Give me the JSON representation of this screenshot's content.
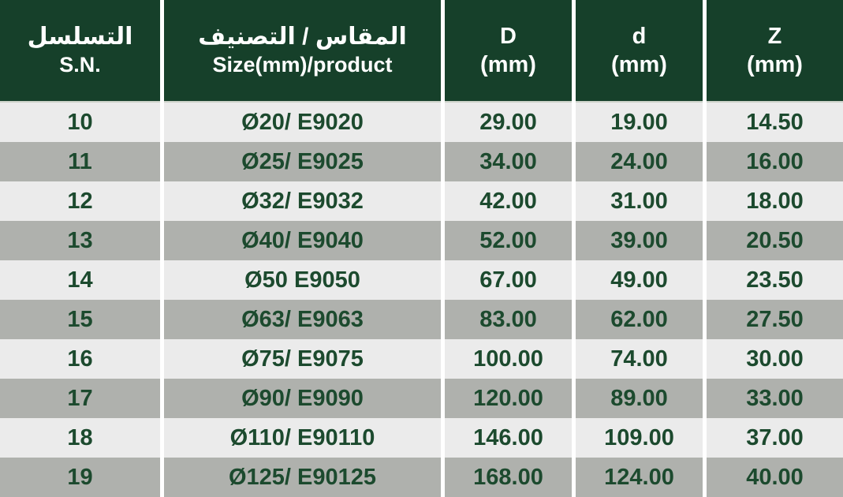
{
  "colors": {
    "header_bg": "#16402a",
    "header_text": "#ffffff",
    "row_light_bg": "#ebebeb",
    "row_dark_bg": "#afb1ad",
    "cell_text": "#1c4a2e",
    "separator": "#ffffff"
  },
  "header": {
    "sn": {
      "line1": "التسلسل",
      "line2": "S.N."
    },
    "size": {
      "line1": "المقاس / التصنيف",
      "line2": "Size(mm)/product"
    },
    "D": {
      "line1": "D",
      "line2": "(mm)"
    },
    "d": {
      "line1": "d",
      "line2": "(mm)"
    },
    "Z": {
      "line1": "Z",
      "line2": "(mm)"
    }
  },
  "rows": [
    {
      "sn": "10",
      "size": "Ø20/ E9020",
      "D": "29.00",
      "d": "19.00",
      "Z": "14.50"
    },
    {
      "sn": "11",
      "size": "Ø25/ E9025",
      "D": "34.00",
      "d": "24.00",
      "Z": "16.00"
    },
    {
      "sn": "12",
      "size": "Ø32/ E9032",
      "D": "42.00",
      "d": "31.00",
      "Z": "18.00"
    },
    {
      "sn": "13",
      "size": "Ø40/ E9040",
      "D": "52.00",
      "d": "39.00",
      "Z": "20.50"
    },
    {
      "sn": "14",
      "size": "Ø50 E9050",
      "D": "67.00",
      "d": "49.00",
      "Z": "23.50"
    },
    {
      "sn": "15",
      "size": "Ø63/ E9063",
      "D": "83.00",
      "d": "62.00",
      "Z": "27.50"
    },
    {
      "sn": "16",
      "size": "Ø75/ E9075",
      "D": "100.00",
      "d": "74.00",
      "Z": "30.00"
    },
    {
      "sn": "17",
      "size": "Ø90/ E9090",
      "D": "120.00",
      "d": "89.00",
      "Z": "33.00"
    },
    {
      "sn": "18",
      "size": "Ø110/ E90110",
      "D": "146.00",
      "d": "109.00",
      "Z": "37.00"
    },
    {
      "sn": "19",
      "size": "Ø125/ E90125",
      "D": "168.00",
      "d": "124.00",
      "Z": "40.00"
    }
  ]
}
